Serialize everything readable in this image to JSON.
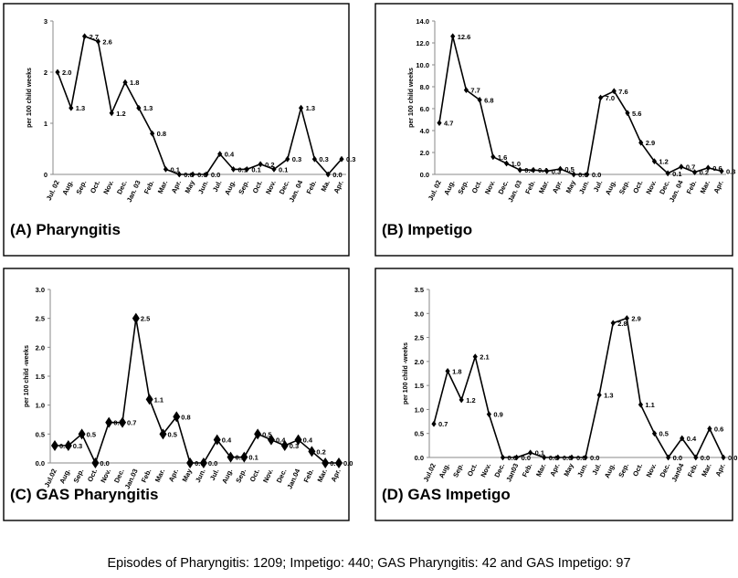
{
  "caption": "Episodes of Pharyngitis: 1209; Impetigo: 440; GAS Pharyngitis: 42 and GAS Impetigo: 97",
  "colors": {
    "line": "#000000",
    "frame": "#000000",
    "axis": "#888888"
  },
  "chart_data": [
    {
      "type": "line",
      "panel_title": "(A) Pharyngitis",
      "ylabel": "per 100 child weeks",
      "ylim": [
        0,
        3
      ],
      "yticks": [
        "0",
        "1",
        "2",
        "3"
      ],
      "marker": "diamond-small",
      "categories": [
        "Jul. 02",
        "Aug.",
        "Sep.",
        "Oct.",
        "Nov.",
        "Dec.",
        "Jan. 03",
        "Feb.",
        "Mar.",
        "Apr.",
        "May",
        "Jun.",
        "Jul.",
        "Aug.",
        "Sep.",
        "Oct.",
        "Nov.",
        "Dec.",
        "Jan. 04",
        "Feb.",
        "Ma.",
        "Apr."
      ],
      "values": [
        2.0,
        1.3,
        2.7,
        2.6,
        1.2,
        1.8,
        1.3,
        0.8,
        0.1,
        0.0,
        0.0,
        0.0,
        0.4,
        0.1,
        0.1,
        0.2,
        0.1,
        0.3,
        1.3,
        0.3,
        0.0,
        0.3
      ],
      "labels": [
        "2.0",
        "1.3",
        "2.7",
        "2.6",
        "1.2",
        "1.8",
        "1.3",
        "0.8",
        "0.1",
        "0.0",
        "0.0",
        "0.0",
        "0.4",
        "0.1",
        "0.1",
        "0.2",
        "0.1",
        "0.3",
        "1.3",
        "0.3",
        "0.0",
        "0.3"
      ]
    },
    {
      "type": "line",
      "panel_title": "(B) Impetigo",
      "ylabel": "per 100 child weeks",
      "ylim": [
        0,
        14
      ],
      "yticks": [
        "0.0",
        "2.0",
        "4.0",
        "6.0",
        "8.0",
        "10.0",
        "12.0",
        "14.0"
      ],
      "marker": "diamond-small",
      "categories": [
        "Jul. 02",
        "Aug.",
        "Sep.",
        "Oct.",
        "Nov.",
        "Dec.",
        "Jan. 03",
        "Feb.",
        "Mar.",
        "Apr.",
        "May",
        "Jun.",
        "Jul.",
        "Aug.",
        "Sep.",
        "Oct.",
        "Nov.",
        "Dec.",
        "Jan. 04",
        "Feb.",
        "Mar.",
        "Apr."
      ],
      "values": [
        4.7,
        12.6,
        7.7,
        6.8,
        1.6,
        1.0,
        0.4,
        0.4,
        0.3,
        0.5,
        0.0,
        0.0,
        7.0,
        7.6,
        5.6,
        2.9,
        1.2,
        0.1,
        0.7,
        0.2,
        0.6,
        0.3
      ],
      "labels": [
        "4.7",
        "12.6",
        "7.7",
        "6.8",
        "1.6",
        "1.0",
        "0.4",
        "0.4",
        "0.3",
        "0.5",
        "0.0",
        "0.0",
        "7.0",
        "7.6",
        "5.6",
        "2.9",
        "1.2",
        "0.1",
        "0.7",
        "0.2",
        "0.6",
        "0.3"
      ]
    },
    {
      "type": "line",
      "panel_title": "(C) GAS Pharyngitis",
      "ylabel": "per 100 child -weeks",
      "ylim": [
        0,
        3
      ],
      "yticks": [
        "0.0",
        "0.5",
        "1.0",
        "1.5",
        "2.0",
        "2.5",
        "3.0"
      ],
      "marker": "diamond-large",
      "categories": [
        "Jul.02",
        "Aug.",
        "Sep.",
        "Oct.",
        "Nov.",
        "Dec.",
        "Jan.03",
        "Feb.",
        "Mar.",
        "Apr.",
        "May",
        "Jun.",
        "Jul.",
        "Aug.",
        "Sep.",
        "Oct.",
        "Nov.",
        "Dec.",
        "Jan.04",
        "Feb.",
        "Mar.",
        "Apr."
      ],
      "values": [
        0.3,
        0.3,
        0.5,
        0.0,
        0.7,
        0.7,
        2.5,
        1.1,
        0.5,
        0.8,
        0.0,
        0.0,
        0.4,
        0.1,
        0.1,
        0.5,
        0.4,
        0.3,
        0.4,
        0.2,
        0.0,
        0.0
      ],
      "labels": [
        "0.3",
        "0.3",
        "0.5",
        "0.0",
        "0.7",
        "0.7",
        "2.5",
        "1.1",
        "0.5",
        "0.8",
        "0.0",
        "0.0",
        "0.4",
        "0.1",
        "0.1",
        "0.5",
        "0.4",
        "0.3",
        "0.4",
        "0.2",
        "0.0",
        "0.0"
      ]
    },
    {
      "type": "line",
      "panel_title": "(D) GAS Impetigo",
      "ylabel": "per 100 child -weeks",
      "ylim": [
        0,
        3.5
      ],
      "yticks": [
        "0.0",
        "0.5",
        "1.0",
        "1.5",
        "2.0",
        "2.5",
        "3.0",
        "3.5"
      ],
      "marker": "diamond-small",
      "categories": [
        "Jul.02",
        "Aug.",
        "Sep.",
        "Oct.",
        "Nov.",
        "Dec.",
        "Jan03",
        "Feb.",
        "Mar.",
        "Apr.",
        "May",
        "Jun.",
        "Jul.",
        "Aug.",
        "Sep.",
        "Oct.",
        "Nov.",
        "Dec.",
        "Jan04",
        "Feb.",
        "Mar.",
        "Apr."
      ],
      "values": [
        0.7,
        1.8,
        1.2,
        2.1,
        0.9,
        0.0,
        0.0,
        0.1,
        0.0,
        0.0,
        0.0,
        0.0,
        1.3,
        2.8,
        2.9,
        1.1,
        0.5,
        0.0,
        0.4,
        0.0,
        0.6,
        0.0
      ],
      "labels": [
        "0.7",
        "1.8",
        "1.2",
        "2.1",
        "0.9",
        "0.0",
        "0.0",
        "0.1",
        "0.0",
        "0.0",
        "0.0",
        "0.0",
        "1.3",
        "2.8",
        "2.9",
        "1.1",
        "0.5",
        "0.0",
        "0.4",
        "0.0",
        "0.6",
        "0.0"
      ]
    }
  ]
}
